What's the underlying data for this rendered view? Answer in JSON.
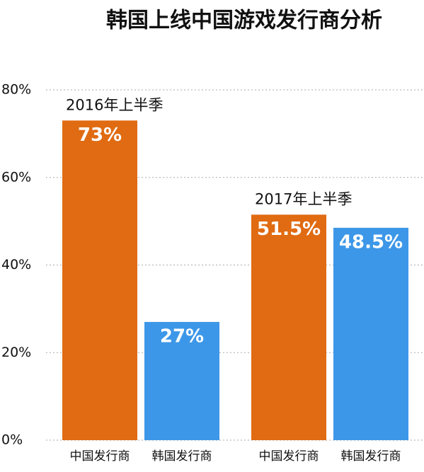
{
  "chart_data": {
    "type": "bar",
    "title": "韩国上线中国游戏发行商分析",
    "categories": [
      "2016年上半季",
      "2017年上半季"
    ],
    "series": [
      {
        "name": "中国发行商",
        "color": "#e06b12",
        "values": [
          73,
          51.5
        ],
        "value_labels": [
          "73%",
          "51.5%"
        ]
      },
      {
        "name": "韩国发行商",
        "color": "#3d97e8",
        "values": [
          27,
          48.5
        ],
        "value_labels": [
          "27%",
          "48.5%"
        ]
      }
    ],
    "ylim": [
      0,
      80
    ],
    "yticks": [
      {
        "value": 0,
        "label": "0%"
      },
      {
        "value": 20,
        "label": "20%"
      },
      {
        "value": 40,
        "label": "40%"
      },
      {
        "value": 60,
        "label": "60%"
      },
      {
        "value": 80,
        "label": "80%"
      }
    ],
    "grid": true
  }
}
